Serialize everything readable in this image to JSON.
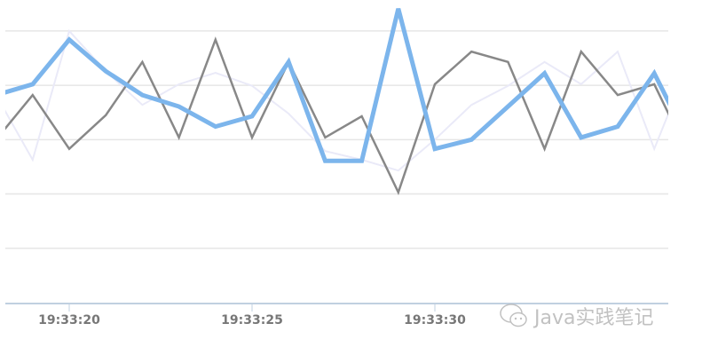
{
  "chart_data": {
    "type": "line",
    "title": "",
    "xlabel": "",
    "ylabel": "",
    "x": [
      "19:33:18",
      "19:33:19",
      "19:33:20",
      "19:33:21",
      "19:33:22",
      "19:33:23",
      "19:33:24",
      "19:33:25",
      "19:33:26",
      "19:33:27",
      "19:33:28",
      "19:33:29",
      "19:33:30",
      "19:33:31",
      "19:33:32",
      "19:33:33",
      "19:33:34",
      "19:33:35",
      "19:33:36",
      "19:33:37"
    ],
    "x_tick_labels": [
      "19:33:20",
      "19:33:25",
      "19:33:30"
    ],
    "ylim": [
      0,
      5.57
    ],
    "y_gridlines": [
      0,
      1,
      2,
      3,
      4,
      5
    ],
    "grid": true,
    "y_tick_labels_shown": false,
    "series": [
      {
        "color": "#eaeaf8",
        "width": 2,
        "values": [
          3.82,
          2.63,
          5.0,
          4.26,
          3.64,
          4.02,
          4.23,
          3.99,
          3.48,
          2.79,
          2.63,
          2.43,
          3.0,
          3.64,
          3.99,
          4.43,
          4.02,
          4.62,
          2.83,
          4.5
        ]
      },
      {
        "color": "#888888",
        "width": 2.5,
        "values": [
          3.0,
          3.82,
          2.83,
          3.45,
          4.43,
          3.04,
          4.84,
          3.04,
          4.43,
          3.04,
          3.43,
          2.03,
          4.02,
          4.62,
          4.43,
          2.83,
          4.62,
          3.82,
          4.02,
          2.63
        ]
      },
      {
        "color": "#7cb5ec",
        "width": 5,
        "values": [
          3.82,
          4.02,
          4.84,
          4.26,
          3.82,
          3.61,
          3.24,
          3.43,
          4.43,
          2.61,
          2.61,
          5.41,
          2.83,
          3.0,
          3.61,
          4.22,
          3.04,
          3.24,
          4.22,
          2.88
        ]
      }
    ]
  },
  "watermark": {
    "icon": "wechat-icon",
    "text": "Java实践笔记"
  }
}
